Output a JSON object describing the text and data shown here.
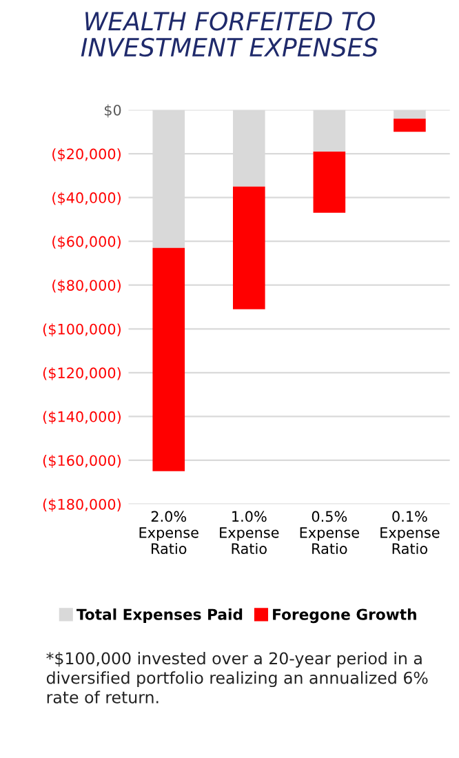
{
  "chart_data": {
    "type": "bar",
    "stacked": true,
    "title": "WEALTH FORFEITED TO\nINVESTMENT EXPENSES",
    "categories": [
      "2.0%\nExpense\nRatio",
      "1.0%\nExpense\nRatio",
      "0.5%\nExpense\nRatio",
      "0.1%\nExpense\nRatio"
    ],
    "series": [
      {
        "name": "Total Expenses Paid",
        "color": "#d9d9d9",
        "values": [
          -63000,
          -35000,
          -19000,
          -4000
        ]
      },
      {
        "name": "Foregone Growth",
        "color": "#ff0000",
        "values": [
          -102000,
          -56000,
          -28000,
          -6000
        ]
      }
    ],
    "ylim": [
      -180000,
      0
    ],
    "yticks": [
      {
        "value": 0,
        "label": "$0"
      },
      {
        "value": -20000,
        "label": "($20,000)"
      },
      {
        "value": -40000,
        "label": "($40,000)"
      },
      {
        "value": -60000,
        "label": "($60,000)"
      },
      {
        "value": -80000,
        "label": "($80,000)"
      },
      {
        "value": -100000,
        "label": "($100,000)"
      },
      {
        "value": -120000,
        "label": "($120,000)"
      },
      {
        "value": -140000,
        "label": "($140,000)"
      },
      {
        "value": -160000,
        "label": "($160,000)"
      },
      {
        "value": -180000,
        "label": "($180,000)"
      }
    ],
    "grid": "y",
    "legend": "bottom",
    "annotations": [
      "*$100,000 invested over a 20-year period in a diversified portfolio realizing an annualized 6% rate of return."
    ]
  }
}
